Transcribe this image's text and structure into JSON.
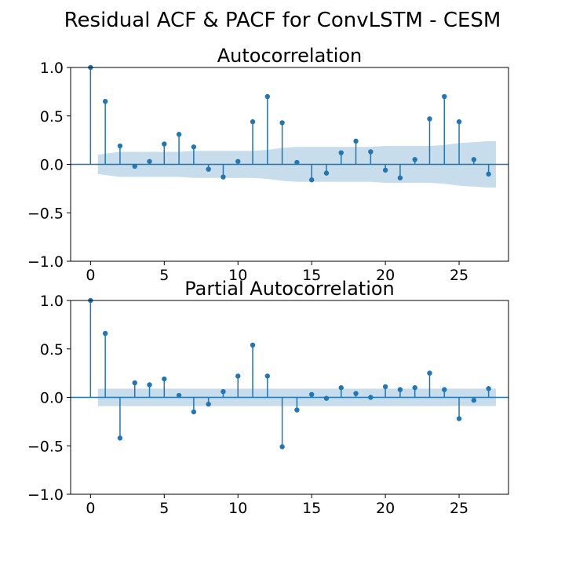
{
  "figure": {
    "suptitle": "Residual ACF & PACF for ConvLSTM - CESM"
  },
  "colors": {
    "stem": "#1f77b4",
    "band": "#1f77b4",
    "band_opacity": 0.25,
    "axes": "#000000",
    "background": "#ffffff"
  },
  "chart_data": [
    {
      "type": "stem",
      "title": "Autocorrelation",
      "xlabel": "",
      "ylabel": "",
      "xlim": [
        -1.35,
        28.35
      ],
      "ylim": [
        -1.0,
        1.0
      ],
      "xticks": [
        0,
        5,
        10,
        15,
        20,
        25
      ],
      "yticks": [
        -1.0,
        -0.5,
        0.0,
        0.5,
        1.0
      ],
      "xtick_labels": [
        "0",
        "5",
        "10",
        "15",
        "20",
        "25"
      ],
      "ytick_labels": [
        "−1.0",
        "−0.5",
        "0.0",
        "0.5",
        "1.0"
      ],
      "grid": false,
      "lags": [
        0,
        1,
        2,
        3,
        4,
        5,
        6,
        7,
        8,
        9,
        10,
        11,
        12,
        13,
        14,
        15,
        16,
        17,
        18,
        19,
        20,
        21,
        22,
        23,
        24,
        25,
        26,
        27
      ],
      "values": [
        1.0,
        0.65,
        0.19,
        -0.02,
        0.03,
        0.21,
        0.31,
        0.18,
        -0.05,
        -0.13,
        0.03,
        0.44,
        0.7,
        0.43,
        0.02,
        -0.16,
        -0.09,
        0.12,
        0.24,
        0.13,
        -0.06,
        -0.14,
        0.05,
        0.47,
        0.7,
        0.44,
        0.05,
        -0.1
      ],
      "confidence_band": {
        "lags": [
          0.5,
          1,
          2,
          3,
          4,
          5,
          6,
          7,
          8,
          9,
          10,
          11,
          12,
          13,
          14,
          15,
          16,
          17,
          18,
          19,
          20,
          21,
          22,
          23,
          24,
          25,
          26,
          27,
          27.5
        ],
        "upper": [
          0.1,
          0.11,
          0.13,
          0.13,
          0.13,
          0.13,
          0.13,
          0.14,
          0.14,
          0.14,
          0.14,
          0.14,
          0.15,
          0.17,
          0.18,
          0.18,
          0.18,
          0.18,
          0.18,
          0.18,
          0.19,
          0.19,
          0.19,
          0.19,
          0.2,
          0.22,
          0.23,
          0.24,
          0.24
        ]
      }
    },
    {
      "type": "stem",
      "title": "Partial Autocorrelation",
      "xlabel": "",
      "ylabel": "",
      "xlim": [
        -1.35,
        28.35
      ],
      "ylim": [
        -1.0,
        1.0
      ],
      "xticks": [
        0,
        5,
        10,
        15,
        20,
        25
      ],
      "yticks": [
        -1.0,
        -0.5,
        0.0,
        0.5,
        1.0
      ],
      "xtick_labels": [
        "0",
        "5",
        "10",
        "15",
        "20",
        "25"
      ],
      "ytick_labels": [
        "−1.0",
        "−0.5",
        "0.0",
        "0.5",
        "1.0"
      ],
      "grid": false,
      "lags": [
        0,
        1,
        2,
        3,
        4,
        5,
        6,
        7,
        8,
        9,
        10,
        11,
        12,
        13,
        14,
        15,
        16,
        17,
        18,
        19,
        20,
        21,
        22,
        23,
        24,
        25,
        26,
        27
      ],
      "values": [
        1.0,
        0.66,
        -0.42,
        0.15,
        0.13,
        0.19,
        0.02,
        -0.15,
        -0.07,
        0.06,
        0.22,
        0.54,
        0.22,
        -0.51,
        -0.13,
        0.03,
        -0.01,
        0.1,
        0.04,
        0.0,
        0.11,
        0.08,
        0.1,
        0.25,
        0.08,
        -0.22,
        -0.03,
        0.09
      ],
      "confidence_band": {
        "lags": [
          0.5,
          27.5
        ],
        "upper": [
          0.09,
          0.09
        ]
      }
    }
  ]
}
